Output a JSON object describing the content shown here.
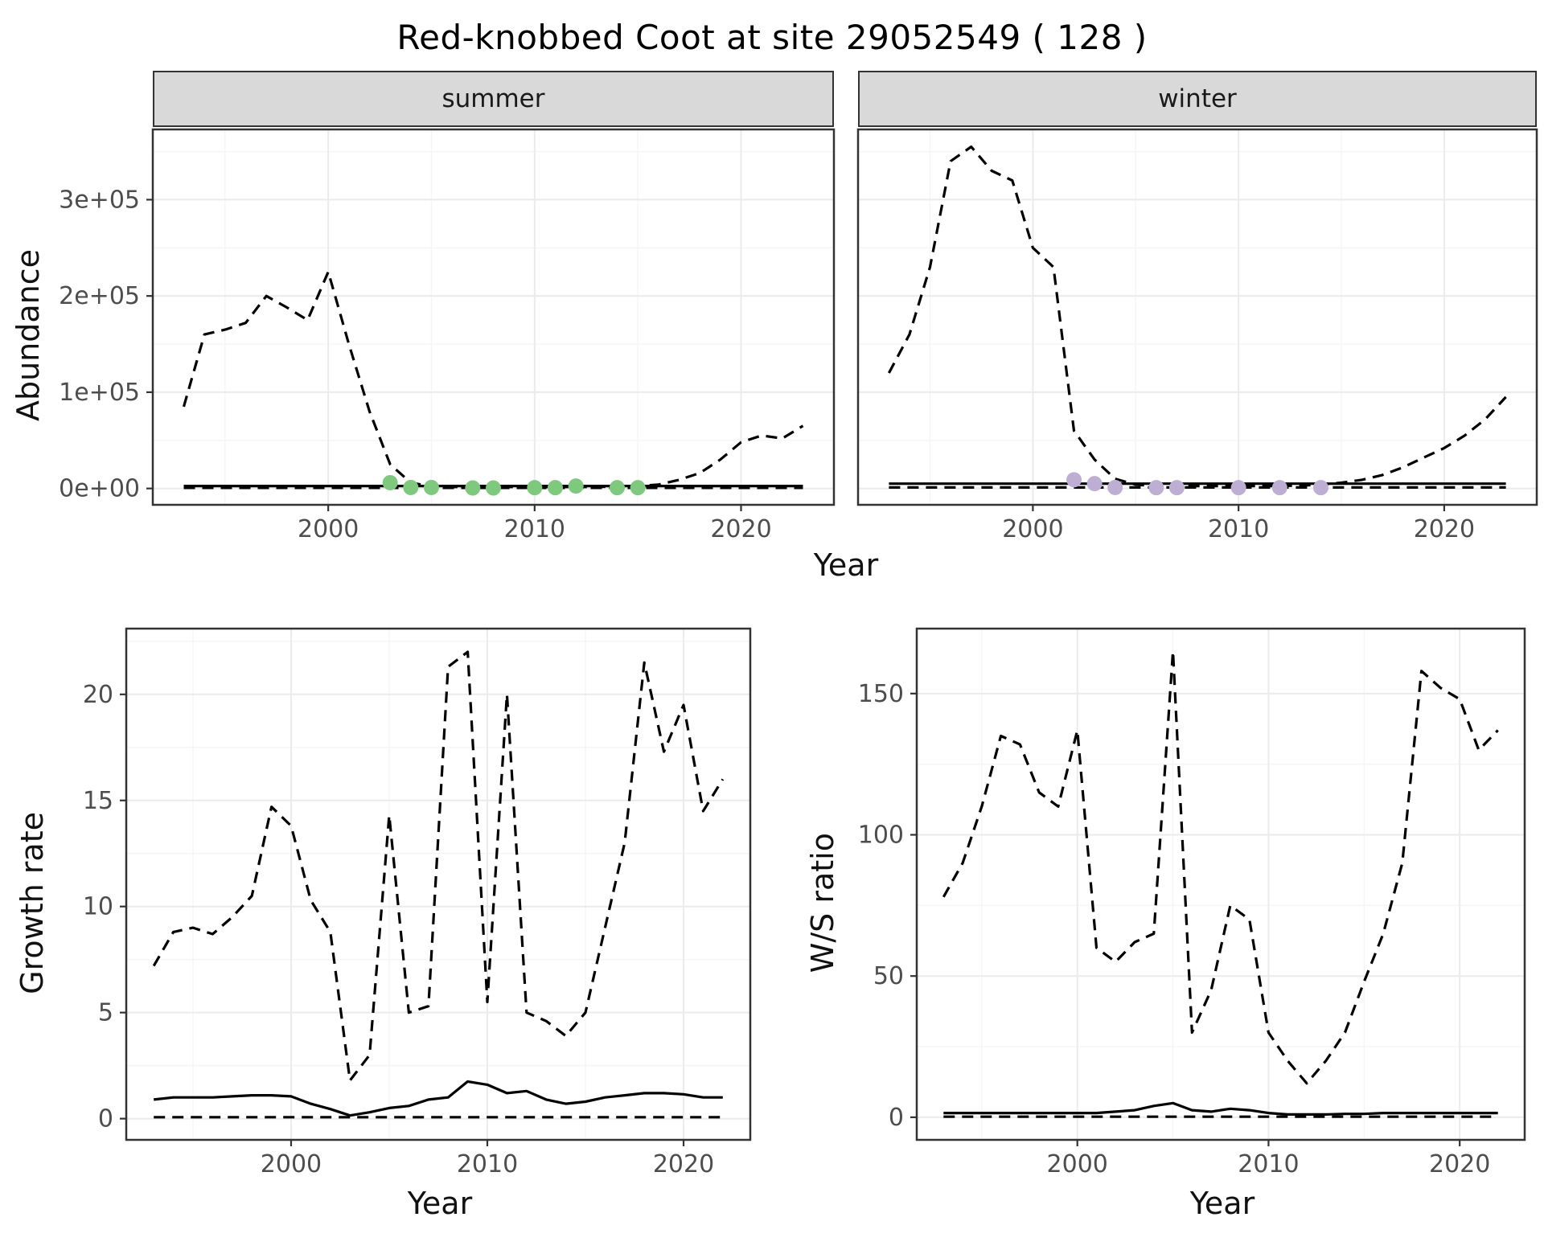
{
  "title": "Red-knobbed Coot at site 29052549 ( 128 )",
  "abundance": {
    "ylabel": "Abundance",
    "xlabel": "Year",
    "facets": [
      {
        "label": "summer"
      },
      {
        "label": "winter"
      }
    ]
  },
  "growth": {
    "ylabel": "Growth rate",
    "xlabel": "Year"
  },
  "ws": {
    "ylabel": "W/S ratio",
    "xlabel": "Year"
  },
  "colors": {
    "summer_point": "#7FC97F",
    "winter_point": "#BEAED4",
    "line": "#000000",
    "strip_bg": "#D9D9D9",
    "panel_border": "#333333",
    "grid_major": "#EBEBEB",
    "grid_minor": "#F5F5F5",
    "tick_label": "#4D4D4D"
  },
  "chart_data": [
    {
      "id": "abundance_summer",
      "type": "line",
      "facet": "summer",
      "title": "summer",
      "xlabel": "Year",
      "ylabel": "Abundance",
      "xlim": [
        1991.5,
        2024.5
      ],
      "ylim": [
        -17000,
        373000
      ],
      "xticks": {
        "values": [
          2000,
          2010,
          2020
        ],
        "labels": [
          "2000",
          "2010",
          "2020"
        ],
        "show": true
      },
      "yticks": {
        "values": [
          0,
          100000,
          200000,
          300000
        ],
        "labels": [
          "0e+00",
          "1e+05",
          "2e+05",
          "3e+05"
        ],
        "show": true
      },
      "grid": true,
      "legend": "none",
      "series": [
        {
          "name": "model-upper-ci",
          "style": "dashed",
          "x_range": [
            1993,
            2023
          ],
          "y": [
            85000,
            160000,
            165000,
            172000,
            200000,
            188000,
            175000,
            225000,
            150000,
            80000,
            25000,
            6000,
            2000,
            1500,
            1500,
            1500,
            1500,
            1500,
            1500,
            1500,
            1500,
            2000,
            2500,
            4000,
            9000,
            16000,
            30000,
            48000,
            55000,
            52000,
            65000
          ]
        },
        {
          "name": "model-estimate",
          "style": "solid",
          "x": [
            1993,
            2023
          ],
          "y": [
            2500,
            2500
          ]
        },
        {
          "name": "model-lower-ci",
          "style": "dashed",
          "x": [
            1993,
            2023
          ],
          "y": [
            600,
            600
          ]
        },
        {
          "name": "count-points",
          "style": "points",
          "color_key": "summer_point",
          "x": [
            2003,
            2004,
            2005,
            2007,
            2008,
            2010,
            2011,
            2012,
            2014,
            2015
          ],
          "y": [
            6000,
            1000,
            1000,
            500,
            500,
            800,
            800,
            2500,
            800,
            800
          ]
        }
      ]
    },
    {
      "id": "abundance_winter",
      "type": "line",
      "facet": "winter",
      "title": "winter",
      "xlabel": "Year",
      "ylabel": "Abundance",
      "xlim": [
        1991.5,
        2024.5
      ],
      "ylim": [
        -17000,
        373000
      ],
      "xticks": {
        "values": [
          2000,
          2010,
          2020
        ],
        "labels": [
          "2000",
          "2010",
          "2020"
        ],
        "show": true
      },
      "yticks": {
        "values": [
          0,
          100000,
          200000,
          300000
        ],
        "labels": [
          "0e+00",
          "1e+05",
          "2e+05",
          "3e+05"
        ],
        "show": false
      },
      "grid": true,
      "legend": "none",
      "series": [
        {
          "name": "model-upper-ci",
          "style": "dashed",
          "x_range": [
            1993,
            2023
          ],
          "y": [
            120000,
            160000,
            230000,
            340000,
            355000,
            330000,
            320000,
            250000,
            230000,
            60000,
            30000,
            10000,
            4000,
            2500,
            2500,
            2500,
            2500,
            2500,
            2500,
            2500,
            3000,
            4000,
            6000,
            9000,
            14000,
            22000,
            32000,
            42000,
            55000,
            72000,
            95000
          ]
        },
        {
          "name": "model-estimate",
          "style": "solid",
          "x": [
            1993,
            2023
          ],
          "y": [
            5000,
            5000
          ]
        },
        {
          "name": "model-lower-ci",
          "style": "dashed",
          "x": [
            1993,
            2023
          ],
          "y": [
            1000,
            1000
          ]
        },
        {
          "name": "count-points",
          "style": "points",
          "color_key": "winter_point",
          "x": [
            2002,
            2003,
            2004,
            2006,
            2007,
            2010,
            2012,
            2014
          ],
          "y": [
            9000,
            5000,
            1000,
            800,
            800,
            800,
            800,
            800
          ]
        }
      ]
    },
    {
      "id": "growth_rate",
      "type": "line",
      "title": "",
      "xlabel": "Year",
      "ylabel": "Growth rate",
      "xlim": [
        1991.6,
        2023.4
      ],
      "ylim": [
        -1.0,
        23.1
      ],
      "xticks": {
        "values": [
          2000,
          2010,
          2020
        ],
        "labels": [
          "2000",
          "2010",
          "2020"
        ],
        "show": true
      },
      "yticks": {
        "values": [
          0,
          5,
          10,
          15,
          20
        ],
        "labels": [
          "0",
          "5",
          "10",
          "15",
          "20"
        ],
        "show": true
      },
      "grid": true,
      "legend": "none",
      "series": [
        {
          "name": "model-upper-ci",
          "style": "dashed",
          "x_range": [
            1993,
            2022
          ],
          "y": [
            7.2,
            8.8,
            9.0,
            8.7,
            9.5,
            10.5,
            14.7,
            13.8,
            10.3,
            8.8,
            1.8,
            3.0,
            14.3,
            5.0,
            5.3,
            21.3,
            22.0,
            5.5,
            20.0,
            5.0,
            4.6,
            3.9,
            5.0,
            9.0,
            13.0,
            21.5,
            17.3,
            19.5,
            14.5,
            16.0
          ]
        },
        {
          "name": "model-estimate",
          "style": "solid",
          "x_range": [
            1993,
            2022
          ],
          "y": [
            0.9,
            1.0,
            1.0,
            1.0,
            1.05,
            1.1,
            1.1,
            1.05,
            0.7,
            0.45,
            0.15,
            0.3,
            0.5,
            0.6,
            0.9,
            1.0,
            1.75,
            1.6,
            1.2,
            1.3,
            0.9,
            0.7,
            0.8,
            1.0,
            1.1,
            1.2,
            1.2,
            1.15,
            1.0,
            1.0
          ]
        },
        {
          "name": "model-lower-ci",
          "style": "dashed",
          "x": [
            1993,
            2022
          ],
          "y": [
            0.07,
            0.07
          ]
        }
      ]
    },
    {
      "id": "ws_ratio",
      "type": "line",
      "title": "",
      "xlabel": "Year",
      "ylabel": "W/S ratio",
      "xlim": [
        1991.6,
        2023.4
      ],
      "ylim": [
        -8,
        173
      ],
      "xticks": {
        "values": [
          2000,
          2010,
          2020
        ],
        "labels": [
          "2000",
          "2010",
          "2020"
        ],
        "show": true
      },
      "yticks": {
        "values": [
          0,
          50,
          100,
          150
        ],
        "labels": [
          "0",
          "50",
          "100",
          "150"
        ],
        "show": true
      },
      "grid": true,
      "legend": "none",
      "series": [
        {
          "name": "model-upper-ci",
          "style": "dashed",
          "x_range": [
            1993,
            2022
          ],
          "y": [
            78,
            90,
            110,
            135,
            132,
            115,
            110,
            137,
            60,
            55,
            62,
            65,
            165,
            30,
            45,
            75,
            70,
            30,
            20,
            12,
            20,
            30,
            48,
            65,
            90,
            158,
            152,
            148,
            130,
            137
          ]
        },
        {
          "name": "model-estimate",
          "style": "solid",
          "x_range": [
            1993,
            2022
          ],
          "y": [
            1.5,
            1.5,
            1.5,
            1.5,
            1.5,
            1.5,
            1.5,
            1.5,
            1.5,
            2.0,
            2.5,
            4.0,
            5.0,
            2.5,
            2.0,
            3.0,
            2.5,
            1.5,
            1.0,
            1.0,
            1.0,
            1.2,
            1.2,
            1.5,
            1.5,
            1.5,
            1.5,
            1.5,
            1.5,
            1.5
          ]
        },
        {
          "name": "model-lower-ci",
          "style": "dashed",
          "x": [
            1993,
            2022
          ],
          "y": [
            0.2,
            0.2
          ]
        }
      ]
    }
  ]
}
